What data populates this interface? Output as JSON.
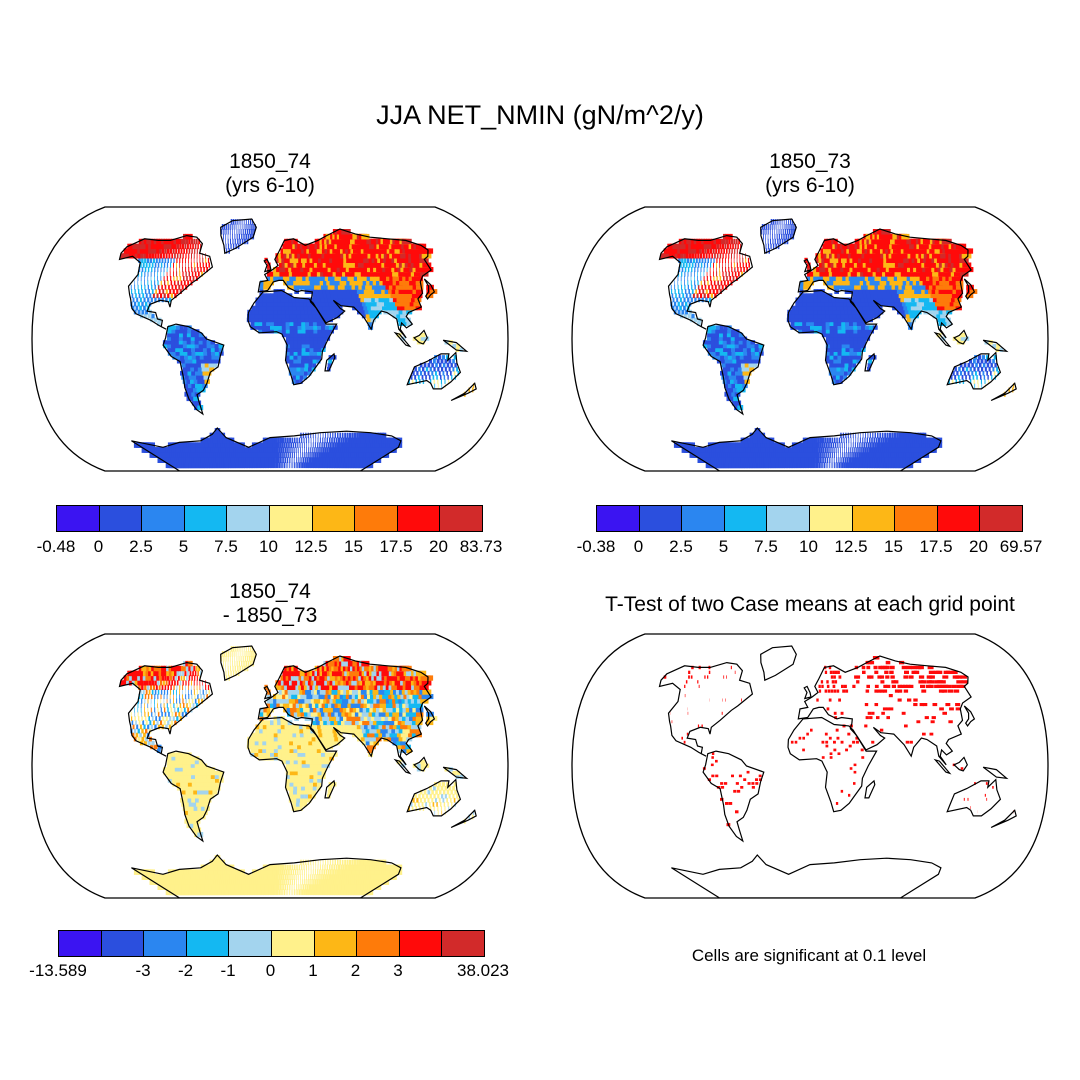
{
  "title": "JJA NET_NMIN (gN/m^2/y)",
  "palette": [
    "#3b14f2",
    "#2b4fde",
    "#2b86f0",
    "#14b8f2",
    "#a3d4ee",
    "#fff18b",
    "#fdb716",
    "#fe7b0a",
    "#ff0a0a",
    "#d22a2a"
  ],
  "colors": {
    "land_very_low": "#2b4fde",
    "land_low": "#2b86f0",
    "land_mid": "#fff18b",
    "land_high": "#fe7b0a",
    "land_very_high": "#ff0a0a",
    "diff_neutral": "#fff18b",
    "significant": "#ff0a0a",
    "coastline": "#000000"
  },
  "panels": [
    {
      "title_line1": "1850_74",
      "title_line2": "(yrs 6-10)",
      "colorbar_labels": [
        "-0.48",
        "0",
        "2.5",
        "5",
        "7.5",
        "10",
        "12.5",
        "15",
        "17.5",
        "20",
        "83.73"
      ]
    },
    {
      "title_line1": "1850_73",
      "title_line2": "(yrs 6-10)",
      "colorbar_labels": [
        "-0.38",
        "0",
        "2.5",
        "5",
        "7.5",
        "10",
        "12.5",
        "15",
        "17.5",
        "20",
        "69.57"
      ]
    },
    {
      "title_line1": "1850_74",
      "title_line2": "- 1850_73",
      "colorbar_labels": [
        "-13.589",
        "",
        "-3",
        "-2",
        "-1",
        "0",
        "1",
        "2",
        "3",
        "",
        "38.023"
      ]
    },
    {
      "title_line1": "T-Test of two Case means at each grid point",
      "note": "Cells are significant at 0.1 level"
    }
  ]
}
